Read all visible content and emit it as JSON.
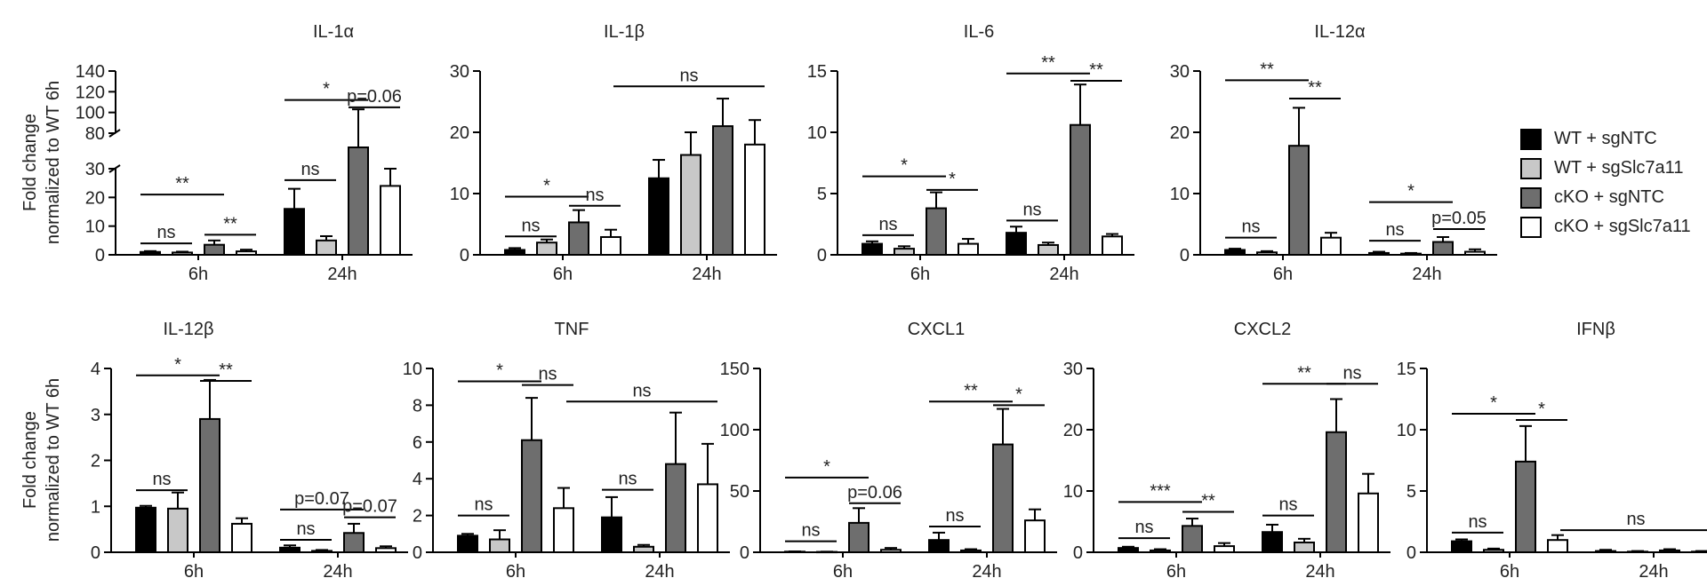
{
  "legend": [
    {
      "label": "WT + sgNTC",
      "color": "#000000"
    },
    {
      "label": "WT + sgSlc7a11",
      "color": "#c8c8c8"
    },
    {
      "label": "cKO + sgNTC",
      "color": "#6e6e6e"
    },
    {
      "label": "cKO + sgSlc7a11",
      "color": "#ffffff"
    }
  ],
  "ylabel_lines": [
    "Fold change",
    "normalized to WT 6h"
  ],
  "chart_data": [
    {
      "type": "bar",
      "title": "IL-1α",
      "categories": [
        "6h",
        "24h"
      ],
      "break": true,
      "yticks_low": [
        0,
        10,
        20,
        30
      ],
      "yticks_high": [
        80,
        100,
        120,
        140
      ],
      "ylim": [
        0,
        140
      ],
      "series": [
        {
          "name": "WT + sgNTC",
          "values": [
            1,
            16
          ],
          "errors": [
            0.3,
            7
          ]
        },
        {
          "name": "WT + sgSlc7a11",
          "values": [
            0.8,
            5
          ],
          "errors": [
            0.3,
            1.5
          ]
        },
        {
          "name": "cKO + sgNTC",
          "values": [
            3.5,
            60
          ],
          "errors": [
            1.5,
            43
          ]
        },
        {
          "name": "cKO + sgSlc7a11",
          "values": [
            1.2,
            24
          ],
          "errors": [
            0.6,
            6
          ]
        }
      ],
      "annotations": [
        {
          "text": "**",
          "cat": 0,
          "from": 0,
          "to": 2,
          "y": 21
        },
        {
          "text": "ns",
          "cat": 0,
          "from": 0,
          "to": 1,
          "y": 4
        },
        {
          "text": "**",
          "cat": 0,
          "from": 2,
          "to": 3,
          "y": 7
        },
        {
          "text": "*",
          "cat": 1,
          "from": 0,
          "to": 2,
          "y": 112
        },
        {
          "text": "ns",
          "cat": 1,
          "from": 0,
          "to": 1,
          "y": 26
        },
        {
          "text": "p=0.06",
          "cat": 1,
          "from": 2,
          "to": 3,
          "y": 105
        }
      ]
    },
    {
      "type": "bar",
      "title": "IL-1β",
      "categories": [
        "6h",
        "24h"
      ],
      "ylim": [
        0,
        30
      ],
      "yticks": [
        0,
        10,
        20,
        30
      ],
      "series": [
        {
          "name": "WT + sgNTC",
          "values": [
            0.8,
            12.5
          ],
          "errors": [
            0.3,
            3
          ]
        },
        {
          "name": "WT + sgSlc7a11",
          "values": [
            2,
            16.3
          ],
          "errors": [
            0.5,
            3.7
          ]
        },
        {
          "name": "cKO + sgNTC",
          "values": [
            5.3,
            21
          ],
          "errors": [
            2,
            4.5
          ]
        },
        {
          "name": "cKO + sgSlc7a11",
          "values": [
            2.9,
            18
          ],
          "errors": [
            1.2,
            4
          ]
        }
      ],
      "annotations": [
        {
          "text": "*",
          "cat": 0,
          "from": 0,
          "to": 2,
          "y": 9.5
        },
        {
          "text": "ns",
          "cat": 0,
          "from": 0,
          "to": 1,
          "y": 3
        },
        {
          "text": "ns",
          "cat": 0,
          "from": 2,
          "to": 3,
          "y": 8
        },
        {
          "text": "ns",
          "cat": 1,
          "from": -4,
          "to": 3,
          "y": 27.5
        }
      ]
    },
    {
      "type": "bar",
      "title": "IL-6",
      "categories": [
        "6h",
        "24h"
      ],
      "ylim": [
        0,
        15
      ],
      "yticks": [
        0,
        5,
        10,
        15
      ],
      "series": [
        {
          "name": "WT + sgNTC",
          "values": [
            0.9,
            1.8
          ],
          "errors": [
            0.2,
            0.5
          ]
        },
        {
          "name": "WT + sgSlc7a11",
          "values": [
            0.5,
            0.8
          ],
          "errors": [
            0.2,
            0.2
          ]
        },
        {
          "name": "cKO + sgNTC",
          "values": [
            3.8,
            10.6
          ],
          "errors": [
            1.3,
            3.3
          ]
        },
        {
          "name": "cKO + sgSlc7a11",
          "values": [
            0.9,
            1.5
          ],
          "errors": [
            0.4,
            0.2
          ]
        }
      ],
      "annotations": [
        {
          "text": "*",
          "cat": 0,
          "from": 0,
          "to": 2,
          "y": 6.4
        },
        {
          "text": "ns",
          "cat": 0,
          "from": 0,
          "to": 1,
          "y": 1.6
        },
        {
          "text": "*",
          "cat": 0,
          "from": 2,
          "to": 3,
          "y": 5.3
        },
        {
          "text": "**",
          "cat": 1,
          "from": 0,
          "to": 2,
          "y": 14.8
        },
        {
          "text": "ns",
          "cat": 1,
          "from": 0,
          "to": 1,
          "y": 2.8
        },
        {
          "text": "**",
          "cat": 1,
          "from": 2,
          "to": 3,
          "y": 14.2
        }
      ]
    },
    {
      "type": "bar",
      "title": "IL-12α",
      "categories": [
        "6h",
        "24h"
      ],
      "ylim": [
        0,
        30
      ],
      "yticks": [
        0,
        10,
        20,
        30
      ],
      "series": [
        {
          "name": "WT + sgNTC",
          "values": [
            0.8,
            0.3
          ],
          "errors": [
            0.2,
            0.2
          ]
        },
        {
          "name": "WT + sgSlc7a11",
          "values": [
            0.4,
            0.2
          ],
          "errors": [
            0.2,
            0.1
          ]
        },
        {
          "name": "cKO + sgNTC",
          "values": [
            17.8,
            2.1
          ],
          "errors": [
            6.2,
            0.8
          ]
        },
        {
          "name": "cKO + sgSlc7a11",
          "values": [
            2.8,
            0.5
          ],
          "errors": [
            0.8,
            0.4
          ]
        }
      ],
      "annotations": [
        {
          "text": "**",
          "cat": 0,
          "from": 0,
          "to": 2,
          "y": 28.5
        },
        {
          "text": "ns",
          "cat": 0,
          "from": 0,
          "to": 1,
          "y": 2.8
        },
        {
          "text": "**",
          "cat": 0,
          "from": 2,
          "to": 3,
          "y": 25.5
        },
        {
          "text": "*",
          "cat": 1,
          "from": 0,
          "to": 2,
          "y": 8.6
        },
        {
          "text": "ns",
          "cat": 1,
          "from": 0,
          "to": 1,
          "y": 2.3
        },
        {
          "text": "p=0.05",
          "cat": 1,
          "from": 2,
          "to": 3,
          "y": 4.2
        }
      ]
    },
    {
      "type": "bar",
      "title": "IL-12β",
      "categories": [
        "6h",
        "24h"
      ],
      "ylim": [
        0,
        4
      ],
      "yticks": [
        0,
        1,
        2,
        3,
        4
      ],
      "series": [
        {
          "name": "WT + sgNTC",
          "values": [
            0.97,
            0.1
          ],
          "errors": [
            0.04,
            0.05
          ]
        },
        {
          "name": "WT + sgSlc7a11",
          "values": [
            0.95,
            0.03
          ],
          "errors": [
            0.35,
            0.02
          ]
        },
        {
          "name": "cKO + sgNTC",
          "values": [
            2.9,
            0.42
          ],
          "errors": [
            0.85,
            0.2
          ]
        },
        {
          "name": "cKO + sgSlc7a11",
          "values": [
            0.62,
            0.09
          ],
          "errors": [
            0.12,
            0.04
          ]
        }
      ],
      "annotations": [
        {
          "text": "*",
          "cat": 0,
          "from": 0,
          "to": 2,
          "y": 3.85
        },
        {
          "text": "ns",
          "cat": 0,
          "from": 0,
          "to": 1,
          "y": 1.35
        },
        {
          "text": "**",
          "cat": 0,
          "from": 2,
          "to": 3,
          "y": 3.73
        },
        {
          "text": "p=0.07",
          "cat": 1,
          "from": 0,
          "to": 2,
          "y": 0.93
        },
        {
          "text": "ns",
          "cat": 1,
          "from": 0,
          "to": 1,
          "y": 0.27
        },
        {
          "text": "p=0.07",
          "cat": 1,
          "from": 2,
          "to": 3,
          "y": 0.76
        }
      ]
    },
    {
      "type": "bar",
      "title": "TNF",
      "categories": [
        "6h",
        "24h"
      ],
      "ylim": [
        0,
        10
      ],
      "yticks": [
        0,
        2,
        4,
        6,
        8,
        10
      ],
      "series": [
        {
          "name": "WT + sgNTC",
          "values": [
            0.9,
            1.9
          ],
          "errors": [
            0.1,
            1.1
          ]
        },
        {
          "name": "WT + sgSlc7a11",
          "values": [
            0.7,
            0.3
          ],
          "errors": [
            0.5,
            0.1
          ]
        },
        {
          "name": "cKO + sgNTC",
          "values": [
            6.1,
            4.8
          ],
          "errors": [
            2.3,
            2.8
          ]
        },
        {
          "name": "cKO + sgSlc7a11",
          "values": [
            2.4,
            3.7
          ],
          "errors": [
            1.1,
            2.2
          ]
        }
      ],
      "annotations": [
        {
          "text": "*",
          "cat": 0,
          "from": 0,
          "to": 2,
          "y": 9.3
        },
        {
          "text": "ns",
          "cat": 0,
          "from": 0,
          "to": 1,
          "y": 2
        },
        {
          "text": "ns",
          "cat": 0,
          "from": 2,
          "to": 3,
          "y": 9.1
        },
        {
          "text": "ns",
          "cat": 1,
          "from": -4,
          "to": 3,
          "y": 8.2
        },
        {
          "text": "ns",
          "cat": 1,
          "from": 0,
          "to": 1,
          "y": 3.4
        }
      ]
    },
    {
      "type": "bar",
      "title": "CXCL1",
      "categories": [
        "6h",
        "24h"
      ],
      "ylim": [
        0,
        150
      ],
      "yticks": [
        0,
        50,
        100,
        150
      ],
      "series": [
        {
          "name": "WT + sgNTC",
          "values": [
            0.5,
            10
          ],
          "errors": [
            0.2,
            6
          ]
        },
        {
          "name": "WT + sgSlc7a11",
          "values": [
            0.3,
            1.5
          ],
          "errors": [
            0.2,
            1
          ]
        },
        {
          "name": "cKO + sgNTC",
          "values": [
            24,
            88
          ],
          "errors": [
            12,
            29
          ]
        },
        {
          "name": "cKO + sgSlc7a11",
          "values": [
            2,
            26
          ],
          "errors": [
            1.5,
            9
          ]
        }
      ],
      "annotations": [
        {
          "text": "*",
          "cat": 0,
          "from": 0,
          "to": 2,
          "y": 61
        },
        {
          "text": "ns",
          "cat": 0,
          "from": 0,
          "to": 1,
          "y": 9
        },
        {
          "text": "p=0.06",
          "cat": 0,
          "from": 2,
          "to": 3,
          "y": 40
        },
        {
          "text": "**",
          "cat": 1,
          "from": 0,
          "to": 2,
          "y": 123
        },
        {
          "text": "ns",
          "cat": 1,
          "from": 0,
          "to": 1,
          "y": 21
        },
        {
          "text": "*",
          "cat": 1,
          "from": 2,
          "to": 3,
          "y": 120
        }
      ]
    },
    {
      "type": "bar",
      "title": "CXCL2",
      "categories": [
        "6h",
        "24h"
      ],
      "ylim": [
        0,
        30
      ],
      "yticks": [
        0,
        10,
        20,
        30
      ],
      "series": [
        {
          "name": "WT + sgNTC",
          "values": [
            0.7,
            3.3
          ],
          "errors": [
            0.2,
            1.2
          ]
        },
        {
          "name": "WT + sgSlc7a11",
          "values": [
            0.3,
            1.6
          ],
          "errors": [
            0.2,
            0.6
          ]
        },
        {
          "name": "cKO + sgNTC",
          "values": [
            4.3,
            19.6
          ],
          "errors": [
            1.2,
            5.4
          ]
        },
        {
          "name": "cKO + sgSlc7a11",
          "values": [
            1,
            9.6
          ],
          "errors": [
            0.5,
            3.2
          ]
        }
      ],
      "annotations": [
        {
          "text": "***",
          "cat": 0,
          "from": 0,
          "to": 2,
          "y": 8.2
        },
        {
          "text": "ns",
          "cat": 0,
          "from": 0,
          "to": 1,
          "y": 2.3
        },
        {
          "text": "**",
          "cat": 0,
          "from": 2,
          "to": 3,
          "y": 6.6
        },
        {
          "text": "**",
          "cat": 1,
          "from": 0,
          "to": 2,
          "y": 27.5
        },
        {
          "text": "ns",
          "cat": 1,
          "from": 0,
          "to": 1,
          "y": 6
        },
        {
          "text": "ns",
          "cat": 1,
          "from": 2,
          "to": 3,
          "y": 27.5
        }
      ]
    },
    {
      "type": "bar",
      "title": "IFNβ",
      "categories": [
        "6h",
        "24h"
      ],
      "ylim": [
        0,
        15
      ],
      "yticks": [
        0,
        5,
        10,
        15
      ],
      "series": [
        {
          "name": "WT + sgNTC",
          "values": [
            0.9,
            0.1
          ],
          "errors": [
            0.15,
            0.1
          ]
        },
        {
          "name": "WT + sgSlc7a11",
          "values": [
            0.2,
            0.05
          ],
          "errors": [
            0.1,
            0.05
          ]
        },
        {
          "name": "cKO + sgNTC",
          "values": [
            7.4,
            0.15
          ],
          "errors": [
            2.9,
            0.1
          ]
        },
        {
          "name": "cKO + sgSlc7a11",
          "values": [
            1,
            0.05
          ],
          "errors": [
            0.4,
            0.05
          ]
        }
      ],
      "annotations": [
        {
          "text": "*",
          "cat": 0,
          "from": 0,
          "to": 2,
          "y": 11.3
        },
        {
          "text": "ns",
          "cat": 0,
          "from": 0,
          "to": 1,
          "y": 1.6
        },
        {
          "text": "*",
          "cat": 0,
          "from": 2,
          "to": 3,
          "y": 10.8
        },
        {
          "text": "ns",
          "cat": 1,
          "from": -4,
          "to": 3,
          "y": 1.8
        }
      ]
    }
  ]
}
